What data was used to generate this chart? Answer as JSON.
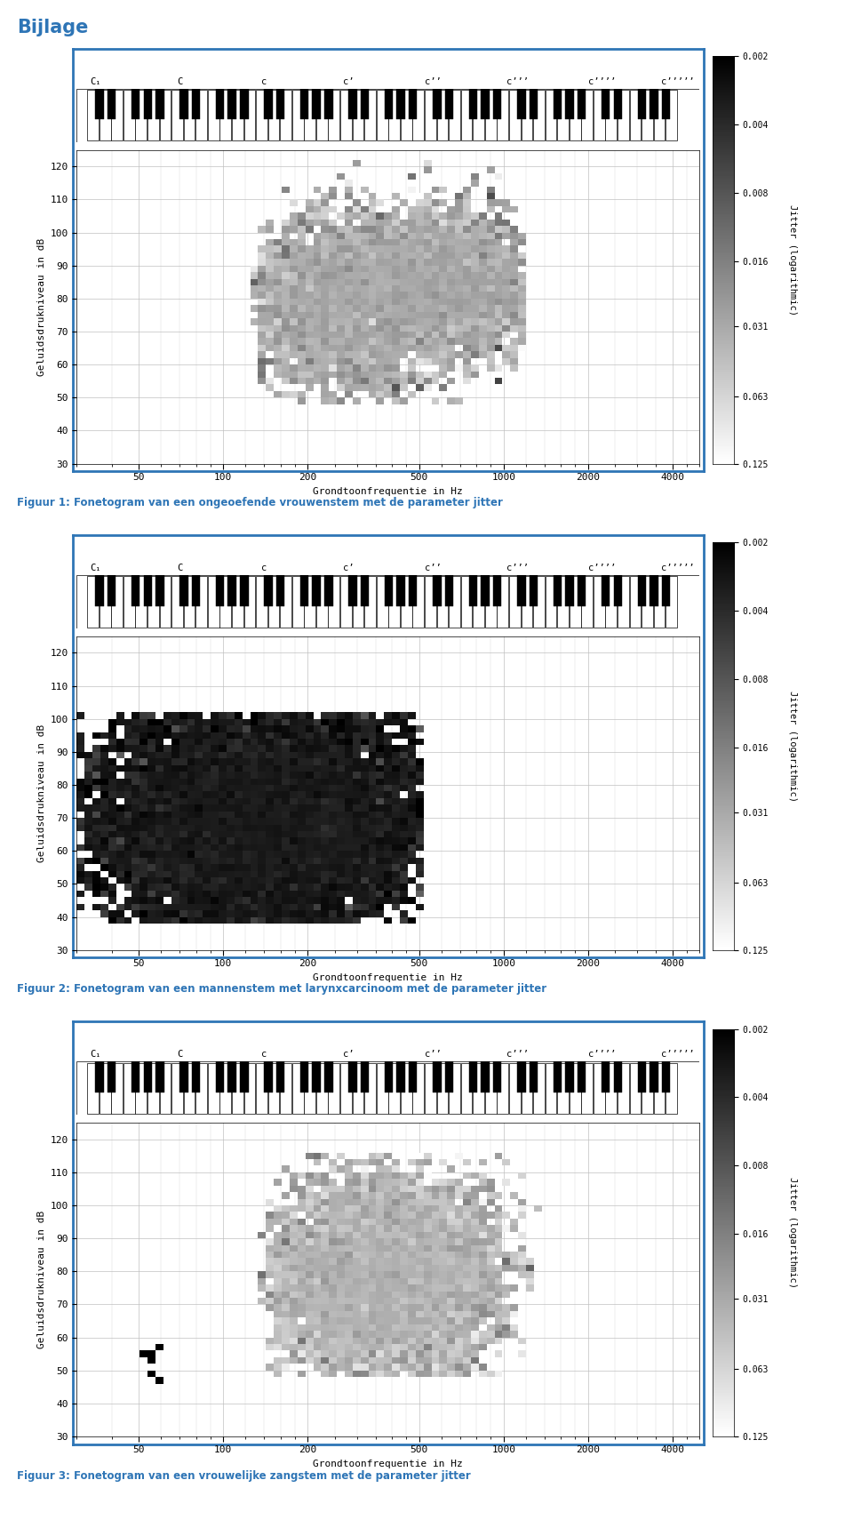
{
  "title": "Bijlage",
  "title_color": "#2E75B6",
  "fig1_caption": "Figuur 1: Fonetogram van een ongeoefende vrouwenstem met de parameter jitter",
  "fig2_caption": "Figuur 2: Fonetogram van een mannenstem met larynxcarcinoom met de parameter jitter",
  "fig3_caption": "Figuur 3: Fonetogram van een vrouwelijke zangstem met de parameter jitter",
  "xlabel": "Grondtoonfrequentie in Hz",
  "ylabel": "Geluidsdrukniveau in dB",
  "colorbar_label": "Jitter (logarithmic)",
  "colorbar_ticks": [
    0.002,
    0.004,
    0.008,
    0.016,
    0.031,
    0.063,
    0.125
  ],
  "x_ticks": [
    50,
    100,
    200,
    500,
    1000,
    2000,
    4000
  ],
  "y_ticks": [
    30,
    40,
    50,
    60,
    70,
    80,
    90,
    100,
    110,
    120
  ],
  "xlim": [
    30,
    5000
  ],
  "ylim": [
    30,
    125
  ],
  "piano_notes": [
    "C₁",
    "C",
    "c",
    "c’",
    "c’’",
    "c’’’",
    "c’’’’",
    "c’’’’’"
  ],
  "piano_freqs": [
    32.7,
    65.4,
    130.8,
    261.6,
    523.3,
    1046.5,
    2093.0,
    4186.0
  ],
  "border_color": "#2E75B6",
  "caption_color": "#2E75B6"
}
